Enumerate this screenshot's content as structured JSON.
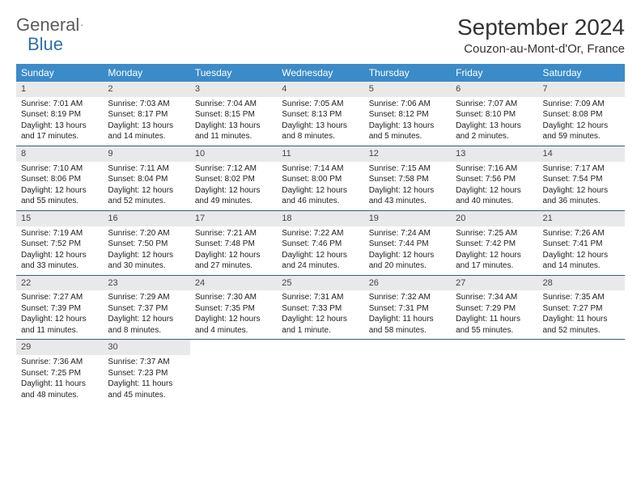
{
  "brand": {
    "part1": "General",
    "part2": "Blue"
  },
  "title": "September 2024",
  "location": "Couzon-au-Mont-d'Or, France",
  "colors": {
    "header_bg": "#3b8bc9",
    "header_text": "#ffffff",
    "daynum_bg": "#e9e9e9",
    "week_border": "#2a5d8a",
    "brand_gray": "#5b5b5b",
    "brand_blue": "#2f6fa8"
  },
  "weekdays": [
    "Sunday",
    "Monday",
    "Tuesday",
    "Wednesday",
    "Thursday",
    "Friday",
    "Saturday"
  ],
  "weeks": [
    [
      {
        "n": "1",
        "sr": "Sunrise: 7:01 AM",
        "ss": "Sunset: 8:19 PM",
        "dl": "Daylight: 13 hours and 17 minutes."
      },
      {
        "n": "2",
        "sr": "Sunrise: 7:03 AM",
        "ss": "Sunset: 8:17 PM",
        "dl": "Daylight: 13 hours and 14 minutes."
      },
      {
        "n": "3",
        "sr": "Sunrise: 7:04 AM",
        "ss": "Sunset: 8:15 PM",
        "dl": "Daylight: 13 hours and 11 minutes."
      },
      {
        "n": "4",
        "sr": "Sunrise: 7:05 AM",
        "ss": "Sunset: 8:13 PM",
        "dl": "Daylight: 13 hours and 8 minutes."
      },
      {
        "n": "5",
        "sr": "Sunrise: 7:06 AM",
        "ss": "Sunset: 8:12 PM",
        "dl": "Daylight: 13 hours and 5 minutes."
      },
      {
        "n": "6",
        "sr": "Sunrise: 7:07 AM",
        "ss": "Sunset: 8:10 PM",
        "dl": "Daylight: 13 hours and 2 minutes."
      },
      {
        "n": "7",
        "sr": "Sunrise: 7:09 AM",
        "ss": "Sunset: 8:08 PM",
        "dl": "Daylight: 12 hours and 59 minutes."
      }
    ],
    [
      {
        "n": "8",
        "sr": "Sunrise: 7:10 AM",
        "ss": "Sunset: 8:06 PM",
        "dl": "Daylight: 12 hours and 55 minutes."
      },
      {
        "n": "9",
        "sr": "Sunrise: 7:11 AM",
        "ss": "Sunset: 8:04 PM",
        "dl": "Daylight: 12 hours and 52 minutes."
      },
      {
        "n": "10",
        "sr": "Sunrise: 7:12 AM",
        "ss": "Sunset: 8:02 PM",
        "dl": "Daylight: 12 hours and 49 minutes."
      },
      {
        "n": "11",
        "sr": "Sunrise: 7:14 AM",
        "ss": "Sunset: 8:00 PM",
        "dl": "Daylight: 12 hours and 46 minutes."
      },
      {
        "n": "12",
        "sr": "Sunrise: 7:15 AM",
        "ss": "Sunset: 7:58 PM",
        "dl": "Daylight: 12 hours and 43 minutes."
      },
      {
        "n": "13",
        "sr": "Sunrise: 7:16 AM",
        "ss": "Sunset: 7:56 PM",
        "dl": "Daylight: 12 hours and 40 minutes."
      },
      {
        "n": "14",
        "sr": "Sunrise: 7:17 AM",
        "ss": "Sunset: 7:54 PM",
        "dl": "Daylight: 12 hours and 36 minutes."
      }
    ],
    [
      {
        "n": "15",
        "sr": "Sunrise: 7:19 AM",
        "ss": "Sunset: 7:52 PM",
        "dl": "Daylight: 12 hours and 33 minutes."
      },
      {
        "n": "16",
        "sr": "Sunrise: 7:20 AM",
        "ss": "Sunset: 7:50 PM",
        "dl": "Daylight: 12 hours and 30 minutes."
      },
      {
        "n": "17",
        "sr": "Sunrise: 7:21 AM",
        "ss": "Sunset: 7:48 PM",
        "dl": "Daylight: 12 hours and 27 minutes."
      },
      {
        "n": "18",
        "sr": "Sunrise: 7:22 AM",
        "ss": "Sunset: 7:46 PM",
        "dl": "Daylight: 12 hours and 24 minutes."
      },
      {
        "n": "19",
        "sr": "Sunrise: 7:24 AM",
        "ss": "Sunset: 7:44 PM",
        "dl": "Daylight: 12 hours and 20 minutes."
      },
      {
        "n": "20",
        "sr": "Sunrise: 7:25 AM",
        "ss": "Sunset: 7:42 PM",
        "dl": "Daylight: 12 hours and 17 minutes."
      },
      {
        "n": "21",
        "sr": "Sunrise: 7:26 AM",
        "ss": "Sunset: 7:41 PM",
        "dl": "Daylight: 12 hours and 14 minutes."
      }
    ],
    [
      {
        "n": "22",
        "sr": "Sunrise: 7:27 AM",
        "ss": "Sunset: 7:39 PM",
        "dl": "Daylight: 12 hours and 11 minutes."
      },
      {
        "n": "23",
        "sr": "Sunrise: 7:29 AM",
        "ss": "Sunset: 7:37 PM",
        "dl": "Daylight: 12 hours and 8 minutes."
      },
      {
        "n": "24",
        "sr": "Sunrise: 7:30 AM",
        "ss": "Sunset: 7:35 PM",
        "dl": "Daylight: 12 hours and 4 minutes."
      },
      {
        "n": "25",
        "sr": "Sunrise: 7:31 AM",
        "ss": "Sunset: 7:33 PM",
        "dl": "Daylight: 12 hours and 1 minute."
      },
      {
        "n": "26",
        "sr": "Sunrise: 7:32 AM",
        "ss": "Sunset: 7:31 PM",
        "dl": "Daylight: 11 hours and 58 minutes."
      },
      {
        "n": "27",
        "sr": "Sunrise: 7:34 AM",
        "ss": "Sunset: 7:29 PM",
        "dl": "Daylight: 11 hours and 55 minutes."
      },
      {
        "n": "28",
        "sr": "Sunrise: 7:35 AM",
        "ss": "Sunset: 7:27 PM",
        "dl": "Daylight: 11 hours and 52 minutes."
      }
    ],
    [
      {
        "n": "29",
        "sr": "Sunrise: 7:36 AM",
        "ss": "Sunset: 7:25 PM",
        "dl": "Daylight: 11 hours and 48 minutes."
      },
      {
        "n": "30",
        "sr": "Sunrise: 7:37 AM",
        "ss": "Sunset: 7:23 PM",
        "dl": "Daylight: 11 hours and 45 minutes."
      },
      {
        "empty": true
      },
      {
        "empty": true
      },
      {
        "empty": true
      },
      {
        "empty": true
      },
      {
        "empty": true
      }
    ]
  ]
}
